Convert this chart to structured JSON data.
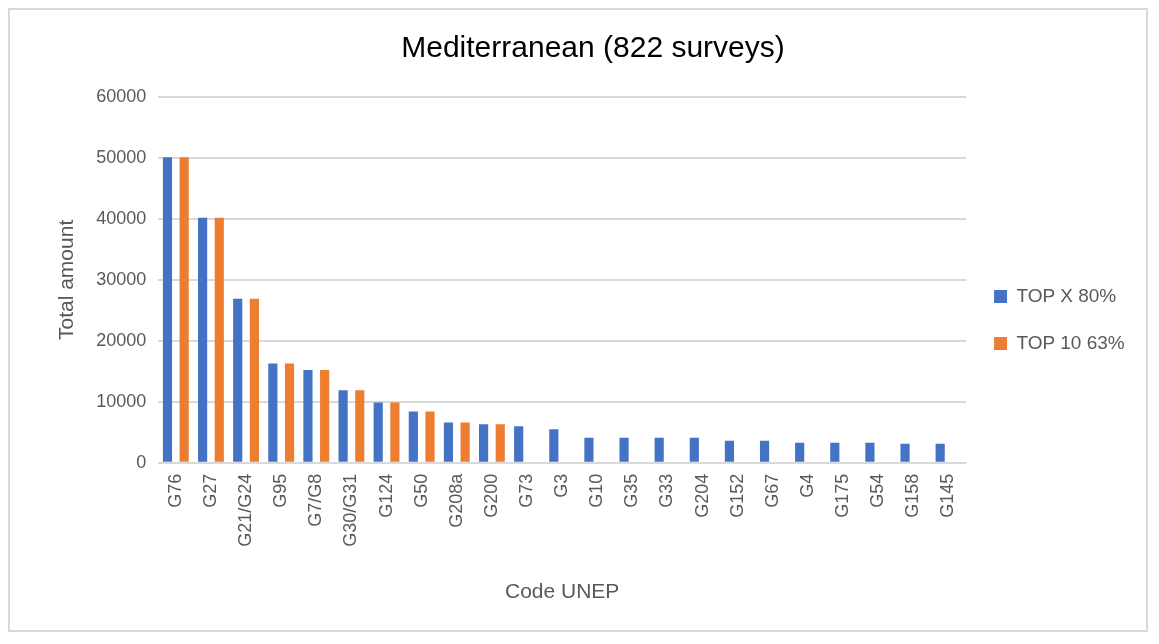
{
  "chart_data": {
    "type": "bar",
    "title": "Mediterranean (822 surveys)",
    "xlabel": "Code UNEP",
    "ylabel": "Total amount",
    "categories": [
      "G76",
      "G27",
      "G21/G24",
      "G95",
      "G7/G8",
      "G30/G31",
      "G124",
      "G50",
      "G208a",
      "G200",
      "G73",
      "G3",
      "G10",
      "G35",
      "G33",
      "G204",
      "G152",
      "G67",
      "G4",
      "G175",
      "G54",
      "G158",
      "G145"
    ],
    "series": [
      {
        "name": "TOP X 80%",
        "color": "#4472c4",
        "values": [
          50100,
          40200,
          26900,
          16300,
          15200,
          11900,
          9900,
          8400,
          6600,
          6300,
          6000,
          5500,
          4100,
          4100,
          4100,
          4100,
          3600,
          3600,
          3300,
          3300,
          3300,
          3100,
          3100
        ]
      },
      {
        "name": "TOP 10 63%",
        "color": "#ed7d31",
        "values": [
          50100,
          40200,
          26900,
          16300,
          15200,
          11900,
          9900,
          8400,
          6600,
          6300,
          null,
          null,
          null,
          null,
          null,
          null,
          null,
          null,
          null,
          null,
          null,
          null,
          null
        ]
      }
    ],
    "ylim": [
      0,
      60000
    ],
    "yticks": [
      0,
      10000,
      20000,
      30000,
      40000,
      50000,
      60000
    ],
    "grid": "y",
    "legend": "right"
  }
}
